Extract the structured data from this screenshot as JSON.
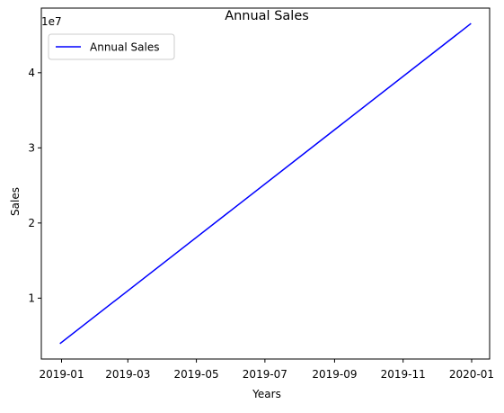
{
  "chart_data": {
    "type": "line",
    "title": "Annual Sales",
    "xlabel": "Years",
    "ylabel": "Sales",
    "y_offset_label": "1e7",
    "x_type": "date",
    "xlim": [
      "2018-12-14",
      "2020-01-17"
    ],
    "ylim": [
      1900000,
      48600000
    ],
    "x_ticks": [
      {
        "value": "2019-01-01",
        "label": "2019-01"
      },
      {
        "value": "2019-03-01",
        "label": "2019-03"
      },
      {
        "value": "2019-05-01",
        "label": "2019-05"
      },
      {
        "value": "2019-07-01",
        "label": "2019-07"
      },
      {
        "value": "2019-09-01",
        "label": "2019-09"
      },
      {
        "value": "2019-11-01",
        "label": "2019-11"
      },
      {
        "value": "2020-01-01",
        "label": "2020-01"
      }
    ],
    "y_ticks": [
      {
        "value": 10000000,
        "label": "1"
      },
      {
        "value": 20000000,
        "label": "2"
      },
      {
        "value": 30000000,
        "label": "3"
      },
      {
        "value": 40000000,
        "label": "4"
      }
    ],
    "grid": false,
    "legend_position": "top-left",
    "series": [
      {
        "name": "Annual Sales",
        "color": "#0000ff",
        "x": [
          "2018-12-31",
          "2019-12-31"
        ],
        "y": [
          4000000,
          46500000
        ]
      }
    ]
  }
}
